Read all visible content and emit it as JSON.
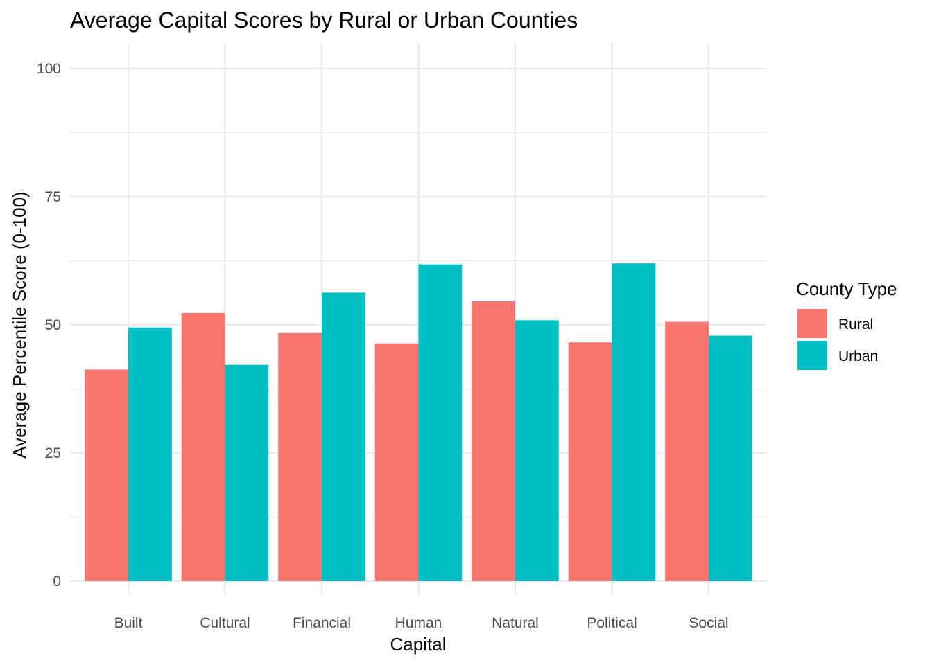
{
  "chart_data": {
    "type": "bar",
    "title": "Average Capital Scores by Rural or Urban Counties",
    "xlabel": "Capital",
    "ylabel": "Average Percentile Score (0-100)",
    "categories": [
      "Built",
      "Cultural",
      "Financial",
      "Human",
      "Natural",
      "Political",
      "Social"
    ],
    "series": [
      {
        "name": "Rural",
        "color": "#F8766D",
        "values": [
          41.3,
          52.3,
          48.4,
          46.4,
          54.6,
          46.6,
          50.6
        ]
      },
      {
        "name": "Urban",
        "color": "#00BFC4",
        "values": [
          49.5,
          42.2,
          56.3,
          61.8,
          50.9,
          62.0,
          47.9
        ]
      }
    ],
    "ylim": [
      0,
      100
    ],
    "yticks": [
      0,
      25,
      50,
      75,
      100
    ],
    "grid": true,
    "legend": {
      "title": "County Type",
      "placement": "right"
    }
  }
}
